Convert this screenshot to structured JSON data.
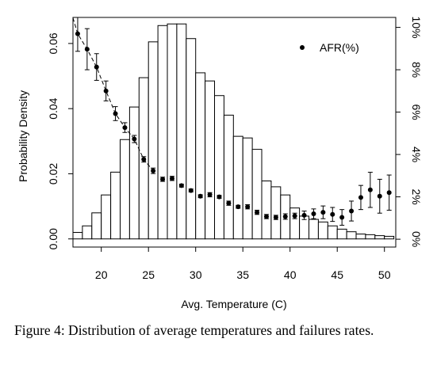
{
  "caption": "Figure 4:  Distribution of average temperatures and failures rates.",
  "chart_data": {
    "type": "bar",
    "xlabel": "Avg. Temperature (C)",
    "ylabel": "Probability Density",
    "xlim": [
      17,
      51.2
    ],
    "ylim": [
      -0.0025,
      0.068
    ],
    "xticks": [
      20,
      25,
      30,
      35,
      40,
      45,
      50
    ],
    "xtick_labels": [
      "20",
      "25",
      "30",
      "35",
      "40",
      "45",
      "50"
    ],
    "yticks": [
      0,
      0.02,
      0.04,
      0.06
    ],
    "ytick_labels": [
      "0.00",
      "0.02",
      "0.04",
      "0.06"
    ],
    "y2lim": [
      -0.37,
      10.47
    ],
    "y2ticks": [
      0,
      2,
      4,
      6,
      8,
      10
    ],
    "y2tick_labels": [
      "0%",
      "2%",
      "4%",
      "6%",
      "8%",
      "10%"
    ],
    "histogram": {
      "bin_start": 17,
      "bin_width": 1,
      "density": [
        0.002,
        0.004,
        0.008,
        0.0135,
        0.0205,
        0.0305,
        0.0405,
        0.0495,
        0.0605,
        0.0655,
        0.066,
        0.066,
        0.0615,
        0.051,
        0.0485,
        0.044,
        0.038,
        0.0315,
        0.031,
        0.0275,
        0.0178,
        0.016,
        0.0135,
        0.0095,
        0.007,
        0.006,
        0.0052,
        0.004,
        0.003,
        0.0022,
        0.0015,
        0.0013,
        0.001,
        0.0008
      ]
    },
    "series": [
      {
        "name": "AFR(%)",
        "x": [
          17.5,
          18.5,
          19.5,
          20.5,
          21.5,
          22.5,
          23.5,
          24.5,
          25.5,
          26.5,
          27.5,
          28.5,
          29.5,
          30.5,
          31.5,
          32.5,
          33.5,
          34.5,
          35.5,
          36.5,
          37.5,
          38.5,
          39.5,
          40.5,
          41.5,
          42.5,
          43.5,
          44.5,
          45.5,
          46.5,
          47.5,
          48.5,
          49.5,
          50.5
        ],
        "y": [
          9.7,
          8.97,
          8.13,
          7.0,
          5.93,
          5.27,
          4.73,
          3.77,
          3.23,
          2.83,
          2.87,
          2.53,
          2.3,
          2.03,
          2.1,
          2.0,
          1.7,
          1.53,
          1.53,
          1.27,
          1.07,
          1.03,
          1.07,
          1.1,
          1.13,
          1.2,
          1.27,
          1.17,
          1.03,
          1.33,
          1.97,
          2.33,
          2.03,
          2.2
        ],
        "err": [
          0.83,
          0.97,
          0.63,
          0.47,
          0.33,
          0.23,
          0.17,
          0.13,
          0.13,
          0.1,
          0.1,
          0.07,
          0.07,
          0.07,
          0.1,
          0.07,
          0.1,
          0.07,
          0.1,
          0.1,
          0.1,
          0.1,
          0.13,
          0.13,
          0.2,
          0.23,
          0.3,
          0.33,
          0.37,
          0.47,
          0.57,
          0.83,
          0.8,
          0.83
        ]
      }
    ],
    "fit_curve": {
      "x": [
        17,
        17.5,
        18.5,
        19.5,
        20.5,
        21.5,
        22.5,
        23.5,
        24.5,
        25.5
      ],
      "y": [
        10.45,
        9.7,
        8.97,
        8.13,
        7.0,
        5.93,
        5.27,
        4.73,
        3.77,
        3.23
      ]
    },
    "legend": {
      "label": "AFR(%)",
      "position": "top-right"
    }
  }
}
